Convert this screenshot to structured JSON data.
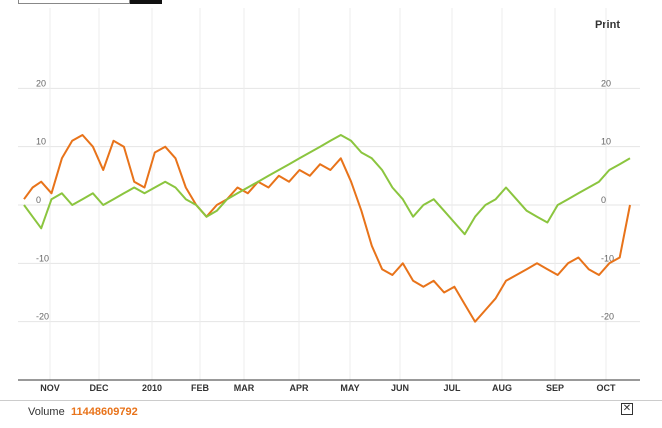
{
  "header": {
    "print_label": "Print"
  },
  "footer": {
    "volume_label": "Volume",
    "volume_value": "11448609792",
    "close_symbol": "✕"
  },
  "chart_data": {
    "type": "line",
    "x_labels": [
      "NOV",
      "DEC",
      "2010",
      "FEB",
      "MAR",
      "APR",
      "MAY",
      "JUN",
      "JUL",
      "AUG",
      "SEP",
      "OCT"
    ],
    "y_ticks": [
      20,
      10,
      0,
      -10,
      -20
    ],
    "ylim": [
      -30,
      30
    ],
    "grid": true,
    "x": [
      "2009-10-27",
      "2009-11-01",
      "2009-11-06",
      "2009-11-12",
      "2009-11-18",
      "2009-11-24",
      "2009-11-30",
      "2009-12-06",
      "2009-12-12",
      "2009-12-18",
      "2009-12-24",
      "2009-12-30",
      "2010-01-05",
      "2010-01-11",
      "2010-01-17",
      "2010-01-23",
      "2010-01-29",
      "2010-02-04",
      "2010-02-10",
      "2010-02-16",
      "2010-02-22",
      "2010-02-28",
      "2010-03-06",
      "2010-03-12",
      "2010-03-18",
      "2010-03-24",
      "2010-03-30",
      "2010-04-05",
      "2010-04-11",
      "2010-04-17",
      "2010-04-23",
      "2010-04-29",
      "2010-05-05",
      "2010-05-11",
      "2010-05-17",
      "2010-05-23",
      "2010-05-29",
      "2010-06-04",
      "2010-06-10",
      "2010-06-16",
      "2010-06-22",
      "2010-06-28",
      "2010-07-04",
      "2010-07-10",
      "2010-07-16",
      "2010-07-22",
      "2010-07-28",
      "2010-08-03",
      "2010-08-09",
      "2010-08-15",
      "2010-08-21",
      "2010-08-27",
      "2010-09-02",
      "2010-09-08",
      "2010-09-14",
      "2010-09-20",
      "2010-09-26",
      "2010-10-02",
      "2010-10-08",
      "2010-10-14"
    ],
    "series": [
      {
        "color": "#e8731a",
        "values": [
          1,
          3,
          4,
          2,
          8,
          11,
          12,
          10,
          6,
          11,
          10,
          4,
          3,
          9,
          10,
          8,
          3,
          0,
          -2,
          0,
          1,
          3,
          2,
          4,
          3,
          5,
          4,
          6,
          5,
          7,
          6,
          8,
          4,
          -1,
          -7,
          -11,
          -12,
          -10,
          -13,
          -14,
          -13,
          -15,
          -14,
          -17,
          -20,
          -18,
          -16,
          -13,
          -12,
          -11,
          -10,
          -11,
          -12,
          -10,
          -9,
          -11,
          -12,
          -10,
          -9,
          0
        ]
      },
      {
        "color": "#8bc53f",
        "values": [
          0,
          -2,
          -4,
          1,
          2,
          0,
          1,
          2,
          0,
          1,
          2,
          3,
          2,
          3,
          4,
          3,
          1,
          0,
          -2,
          -1,
          1,
          2,
          3,
          4,
          5,
          6,
          7,
          8,
          9,
          10,
          11,
          12,
          11,
          9,
          8,
          6,
          3,
          1,
          -2,
          0,
          1,
          -1,
          -3,
          -5,
          -2,
          0,
          1,
          3,
          1,
          -1,
          -2,
          -3,
          0,
          1,
          2,
          3,
          4,
          6,
          7,
          8
        ]
      }
    ]
  }
}
